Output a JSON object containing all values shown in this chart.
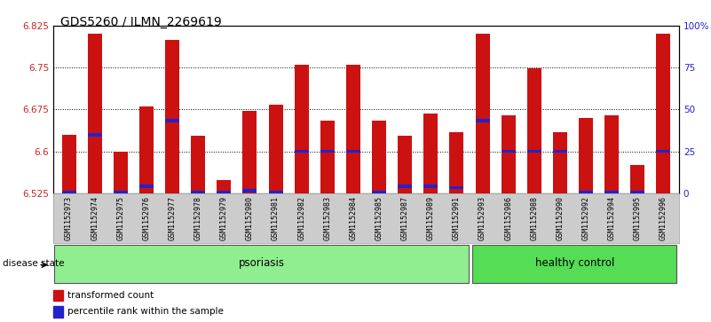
{
  "title": "GDS5260 / ILMN_2269619",
  "samples": [
    "GSM1152973",
    "GSM1152974",
    "GSM1152975",
    "GSM1152976",
    "GSM1152977",
    "GSM1152978",
    "GSM1152979",
    "GSM1152980",
    "GSM1152981",
    "GSM1152982",
    "GSM1152983",
    "GSM1152984",
    "GSM1152985",
    "GSM1152987",
    "GSM1152989",
    "GSM1152991",
    "GSM1152993",
    "GSM1152986",
    "GSM1152988",
    "GSM1152990",
    "GSM1152992",
    "GSM1152994",
    "GSM1152995",
    "GSM1152996"
  ],
  "red_values": [
    6.63,
    6.81,
    6.6,
    6.68,
    6.8,
    6.628,
    6.548,
    6.672,
    6.683,
    6.755,
    6.655,
    6.755,
    6.655,
    6.628,
    6.668,
    6.635,
    6.81,
    6.665,
    6.748,
    6.635,
    6.66,
    6.665,
    6.575,
    6.81
  ],
  "blue_values": [
    6.527,
    6.63,
    6.527,
    6.537,
    6.655,
    6.526,
    6.526,
    6.53,
    6.526,
    6.6,
    6.6,
    6.6,
    6.527,
    6.538,
    6.537,
    6.535,
    6.655,
    6.6,
    6.6,
    6.6,
    6.526,
    6.527,
    6.526,
    6.6
  ],
  "psoriasis_count": 16,
  "healthy_count": 8,
  "ymin": 6.525,
  "ymax": 6.825,
  "yticks": [
    6.525,
    6.6,
    6.675,
    6.75,
    6.825
  ],
  "ytick_labels": [
    "6.525",
    "6.6",
    "6.675",
    "6.75",
    "6.825"
  ],
  "right_ytick_pcts": [
    0,
    25,
    50,
    75,
    100
  ],
  "right_ytick_labels": [
    "0",
    "25",
    "50",
    "75",
    "100%"
  ],
  "bar_color": "#CC1111",
  "blue_color": "#2222CC",
  "psoriasis_bg": "#90EE90",
  "healthy_bg": "#55DD55",
  "label_bg": "#CCCCCC",
  "disease_label": "disease state",
  "psoriasis_label": "psoriasis",
  "healthy_label": "healthy control",
  "legend_red": "transformed count",
  "legend_blue": "percentile rank within the sample",
  "bar_width": 0.55
}
